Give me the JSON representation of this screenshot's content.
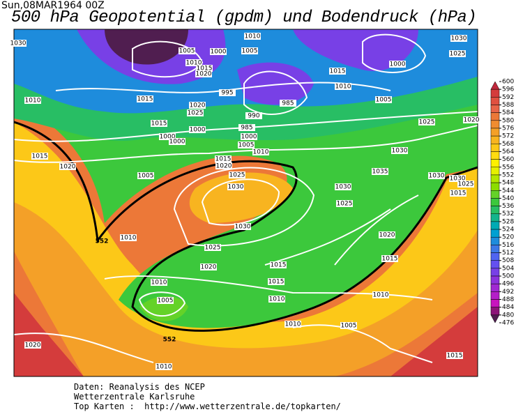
{
  "header": {
    "date": "Sun,08MAR1964  00Z",
    "title": "500 hPa Geopotential (gpdm) und Bodendruck (hPa)"
  },
  "colorbar": {
    "ticks": [
      600,
      596,
      592,
      588,
      584,
      580,
      576,
      572,
      568,
      564,
      560,
      556,
      552,
      548,
      544,
      540,
      536,
      532,
      528,
      524,
      520,
      516,
      512,
      508,
      504,
      500,
      496,
      492,
      488,
      484,
      480,
      476
    ],
    "colors": [
      "#c0283c",
      "#d43c3c",
      "#e05040",
      "#e86448",
      "#ec7838",
      "#f08c30",
      "#f4a028",
      "#f8b420",
      "#fcc818",
      "#ffdc10",
      "#fff000",
      "#e6f000",
      "#b4e600",
      "#8cdc00",
      "#64d228",
      "#3cc83c",
      "#28be64",
      "#14b48c",
      "#00aab4",
      "#00a0d2",
      "#1e8cdc",
      "#3c78e6",
      "#5064f0",
      "#6450f0",
      "#7840e6",
      "#8c32dc",
      "#a028d2",
      "#b41ec8",
      "#c814be",
      "#8c1478",
      "#501e50"
    ]
  },
  "map": {
    "isobar_labels": [
      1030,
      1010,
      1005,
      1000,
      1005,
      1030,
      1025,
      1000,
      1010,
      1015,
      1020,
      1015,
      1010,
      1010,
      1015,
      995,
      985,
      1005,
      1020,
      1025,
      990,
      1015,
      1000,
      985,
      1025,
      1020,
      1000,
      1000,
      1000,
      1005,
      1010,
      1030,
      1015,
      1020,
      1015,
      1020,
      1005,
      1025,
      1035,
      1030,
      1030,
      1025,
      1030,
      1030,
      1015,
      1025,
      1030,
      1010,
      1020,
      1025,
      1015,
      1020,
      1015,
      1010,
      1015,
      1010,
      1005,
      1010,
      1010,
      1005,
      1020,
      1010,
      1015
    ],
    "height_labels": [
      552,
      552
    ]
  },
  "footer": {
    "lines": [
      "Daten: Reanalysis des NCEP",
      "Wetterzentrale Karlsruhe",
      "Top Karten :  http://www.wetterzentrale.de/topkarten/"
    ]
  }
}
